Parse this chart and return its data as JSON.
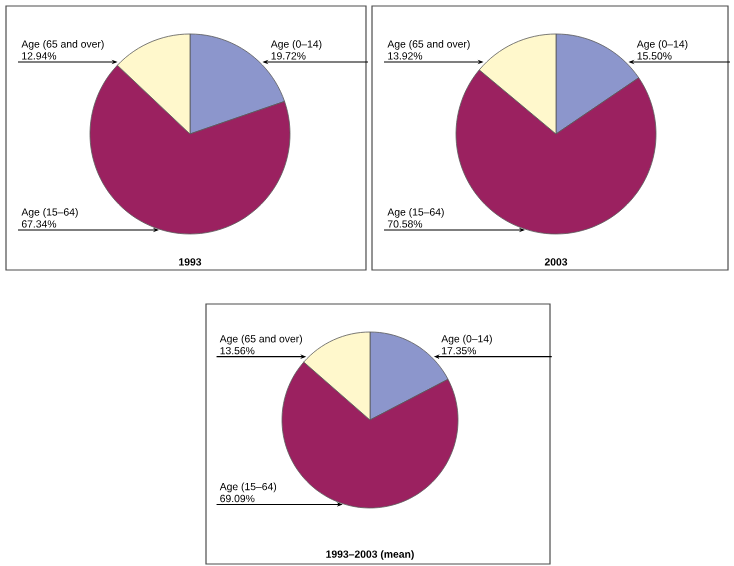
{
  "chart_data": [
    {
      "type": "pie",
      "title": "1993",
      "categories": [
        "Age (0–14)",
        "Age (15–64)",
        "Age (65 and over)"
      ],
      "values": [
        19.72,
        67.34,
        12.94
      ],
      "value_labels": [
        "19.72%",
        "67.34%",
        "12.94%"
      ],
      "colors": [
        "#8c96cc",
        "#9b2160",
        "#fff8cc"
      ]
    },
    {
      "type": "pie",
      "title": "2003",
      "categories": [
        "Age (0–14)",
        "Age (15–64)",
        "Age (65 and over)"
      ],
      "values": [
        15.5,
        70.58,
        13.92
      ],
      "value_labels": [
        "15.50%",
        "70.58%",
        "13.92%"
      ],
      "colors": [
        "#8c96cc",
        "#9b2160",
        "#fff8cc"
      ]
    },
    {
      "type": "pie",
      "title": "1993–2003 (mean)",
      "categories": [
        "Age (0–14)",
        "Age (15–64)",
        "Age (65 and over)"
      ],
      "values": [
        17.35,
        69.09,
        13.56
      ],
      "value_labels": [
        "17.35%",
        "69.09%",
        "13.56%"
      ],
      "colors": [
        "#8c96cc",
        "#9b2160",
        "#fff8cc"
      ]
    }
  ]
}
